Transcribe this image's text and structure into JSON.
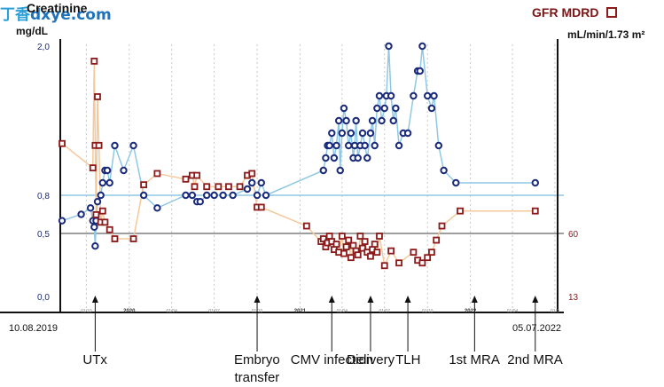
{
  "watermark": {
    "prefix": "丁香",
    "domain": "dxye.com"
  },
  "chart_data": {
    "type": "line",
    "left_axis": {
      "title": "Creatinine",
      "unit": "mg/dL",
      "ticks": [
        {
          "value": 2.0,
          "label": "2,0"
        },
        {
          "value": 0.8,
          "label": "0,8"
        },
        {
          "value": 0.5,
          "label": "0,5"
        },
        {
          "value": 0.0,
          "label": "0,0"
        }
      ],
      "color": "#1a2a7a"
    },
    "right_axis": {
      "title": "GFR MDRD",
      "unit": "mL/min/1.73 m²",
      "ticks": [
        {
          "value": 60,
          "label": "60"
        },
        {
          "value": 13,
          "label": "13"
        }
      ],
      "color": "#8b1a1a"
    },
    "x_start": "10.08.2019",
    "x_end": "05.07.2022",
    "year_ticks": [
      {
        "date": "2020-01-01",
        "label": "2020"
      },
      {
        "date": "2021-01-01",
        "label": "2021"
      },
      {
        "date": "2022-01-01",
        "label": "2022"
      }
    ],
    "minor_ticks": [
      {
        "date": "2019-10-01",
        "label": "01/10"
      },
      {
        "date": "2020-04-01",
        "label": "01/04"
      },
      {
        "date": "2020-07-01",
        "label": "01/07"
      },
      {
        "date": "2020-10-01",
        "label": "01/10"
      },
      {
        "date": "2021-04-01",
        "label": "01/04"
      },
      {
        "date": "2021-07-01",
        "label": "01/07"
      },
      {
        "date": "2021-10-01",
        "label": "01/10"
      },
      {
        "date": "2022-04-01",
        "label": "01/04"
      },
      {
        "date": "2022-07-01",
        "label": "01/0"
      }
    ],
    "reference_lines": [
      {
        "axis": "left",
        "value": 0.8,
        "color": "#8fc8e4"
      },
      {
        "axis": "left",
        "value": 0.5,
        "color": "#9e9e9e"
      }
    ],
    "series": [
      {
        "name": "Creatinine",
        "axis": "left",
        "color": "#1a2a7a",
        "line_color": "#8fc8e4",
        "marker": "circle",
        "points": [
          [
            "2019-08-10",
            0.6
          ],
          [
            "2019-09-20",
            0.65
          ],
          [
            "2019-10-10",
            0.7
          ],
          [
            "2019-10-15",
            0.6
          ],
          [
            "2019-10-18",
            0.55
          ],
          [
            "2019-10-20",
            0.4
          ],
          [
            "2019-10-22",
            0.6
          ],
          [
            "2019-10-25",
            0.75
          ],
          [
            "2019-11-01",
            0.8
          ],
          [
            "2019-11-05",
            0.9
          ],
          [
            "2019-11-10",
            1.0
          ],
          [
            "2019-11-15",
            1.0
          ],
          [
            "2019-11-20",
            0.9
          ],
          [
            "2019-12-01",
            1.2
          ],
          [
            "2019-12-20",
            1.0
          ],
          [
            "2020-01-10",
            1.2
          ],
          [
            "2020-02-01",
            0.8
          ],
          [
            "2020-03-01",
            0.7
          ],
          [
            "2020-05-01",
            0.8
          ],
          [
            "2020-05-15",
            0.8
          ],
          [
            "2020-05-25",
            0.75
          ],
          [
            "2020-06-01",
            0.75
          ],
          [
            "2020-06-15",
            0.8
          ],
          [
            "2020-07-01",
            0.8
          ],
          [
            "2020-07-20",
            0.8
          ],
          [
            "2020-08-10",
            0.8
          ],
          [
            "2020-09-10",
            0.85
          ],
          [
            "2020-09-20",
            0.9
          ],
          [
            "2020-10-01",
            0.8
          ],
          [
            "2020-10-10",
            0.9
          ],
          [
            "2020-10-20",
            0.8
          ],
          [
            "2021-02-20",
            1.0
          ],
          [
            "2021-02-25",
            1.1
          ],
          [
            "2021-03-01",
            1.2
          ],
          [
            "2021-03-05",
            1.2
          ],
          [
            "2021-03-10",
            1.3
          ],
          [
            "2021-03-15",
            1.1
          ],
          [
            "2021-03-20",
            1.2
          ],
          [
            "2021-03-25",
            1.4
          ],
          [
            "2021-03-28",
            1.0
          ],
          [
            "2021-04-01",
            1.3
          ],
          [
            "2021-04-05",
            1.5
          ],
          [
            "2021-04-10",
            1.4
          ],
          [
            "2021-04-15",
            1.2
          ],
          [
            "2021-04-20",
            1.3
          ],
          [
            "2021-04-25",
            1.1
          ],
          [
            "2021-04-28",
            1.2
          ],
          [
            "2021-05-01",
            1.4
          ],
          [
            "2021-05-05",
            1.1
          ],
          [
            "2021-05-10",
            1.2
          ],
          [
            "2021-05-15",
            1.3
          ],
          [
            "2021-05-20",
            1.2
          ],
          [
            "2021-05-25",
            1.1
          ],
          [
            "2021-06-01",
            1.3
          ],
          [
            "2021-06-05",
            1.4
          ],
          [
            "2021-06-10",
            1.2
          ],
          [
            "2021-06-15",
            1.5
          ],
          [
            "2021-06-20",
            1.6
          ],
          [
            "2021-06-25",
            1.4
          ],
          [
            "2021-07-01",
            1.5
          ],
          [
            "2021-07-05",
            1.6
          ],
          [
            "2021-07-10",
            2.0
          ],
          [
            "2021-07-15",
            1.6
          ],
          [
            "2021-07-20",
            1.4
          ],
          [
            "2021-07-25",
            1.5
          ],
          [
            "2021-08-01",
            1.2
          ],
          [
            "2021-08-10",
            1.3
          ],
          [
            "2021-08-20",
            1.3
          ],
          [
            "2021-09-01",
            1.6
          ],
          [
            "2021-09-10",
            1.8
          ],
          [
            "2021-09-15",
            1.8
          ],
          [
            "2021-09-20",
            2.0
          ],
          [
            "2021-10-01",
            1.6
          ],
          [
            "2021-10-10",
            1.5
          ],
          [
            "2021-10-15",
            1.6
          ],
          [
            "2021-10-25",
            1.2
          ],
          [
            "2021-11-05",
            1.0
          ],
          [
            "2021-12-01",
            0.9
          ],
          [
            "2022-05-20",
            0.9
          ]
        ]
      },
      {
        "name": "GFR MDRD",
        "axis": "right",
        "color": "#8b1a1a",
        "line_color": "#f5c89a",
        "marker": "square",
        "points": [
          [
            "2019-08-10",
            108
          ],
          [
            "2019-10-15",
            95
          ],
          [
            "2019-10-18",
            152
          ],
          [
            "2019-10-20",
            107
          ],
          [
            "2019-10-22",
            70
          ],
          [
            "2019-10-25",
            133
          ],
          [
            "2019-10-28",
            107
          ],
          [
            "2019-11-01",
            66
          ],
          [
            "2019-11-05",
            72
          ],
          [
            "2019-11-10",
            66
          ],
          [
            "2019-11-20",
            62
          ],
          [
            "2019-12-01",
            56
          ],
          [
            "2020-01-10",
            56
          ],
          [
            "2020-02-01",
            86
          ],
          [
            "2020-03-01",
            92
          ],
          [
            "2020-05-01",
            89
          ],
          [
            "2020-05-15",
            91
          ],
          [
            "2020-05-20",
            85
          ],
          [
            "2020-05-25",
            91
          ],
          [
            "2020-06-15",
            85
          ],
          [
            "2020-07-10",
            85
          ],
          [
            "2020-08-01",
            85
          ],
          [
            "2020-08-25",
            85
          ],
          [
            "2020-09-10",
            91
          ],
          [
            "2020-09-20",
            92
          ],
          [
            "2020-10-01",
            74
          ],
          [
            "2020-10-10",
            74
          ],
          [
            "2021-01-15",
            64
          ],
          [
            "2021-02-15",
            54
          ],
          [
            "2021-02-20",
            56
          ],
          [
            "2021-02-25",
            50
          ],
          [
            "2021-03-01",
            53
          ],
          [
            "2021-03-05",
            58
          ],
          [
            "2021-03-10",
            54
          ],
          [
            "2021-03-15",
            48
          ],
          [
            "2021-03-20",
            52
          ],
          [
            "2021-03-25",
            46
          ],
          [
            "2021-04-01",
            58
          ],
          [
            "2021-04-05",
            45
          ],
          [
            "2021-04-10",
            50
          ],
          [
            "2021-04-15",
            55
          ],
          [
            "2021-04-20",
            42
          ],
          [
            "2021-04-25",
            51
          ],
          [
            "2021-05-01",
            47
          ],
          [
            "2021-05-05",
            44
          ],
          [
            "2021-05-10",
            58
          ],
          [
            "2021-05-15",
            49
          ],
          [
            "2021-05-20",
            54
          ],
          [
            "2021-05-25",
            46
          ],
          [
            "2021-06-01",
            43
          ],
          [
            "2021-06-05",
            48
          ],
          [
            "2021-06-10",
            52
          ],
          [
            "2021-06-15",
            46
          ],
          [
            "2021-06-20",
            58
          ],
          [
            "2021-07-01",
            36
          ],
          [
            "2021-07-15",
            47
          ],
          [
            "2021-08-01",
            38
          ],
          [
            "2021-09-01",
            46
          ],
          [
            "2021-09-10",
            40
          ],
          [
            "2021-09-20",
            38
          ],
          [
            "2021-10-01",
            42
          ],
          [
            "2021-10-10",
            46
          ],
          [
            "2021-10-20",
            55
          ],
          [
            "2021-11-01",
            64
          ],
          [
            "2021-12-10",
            72
          ],
          [
            "2022-05-20",
            72
          ]
        ]
      }
    ],
    "events": [
      {
        "label": "UTx",
        "date": "2019-10-20"
      },
      {
        "label": "Embryo\ntransfer",
        "date": "2020-10-01"
      },
      {
        "label": "CMV infection",
        "date": "2021-03-10"
      },
      {
        "label": "Delivery",
        "date": "2021-06-01"
      },
      {
        "label": "TLH",
        "date": "2021-08-20"
      },
      {
        "label": "1st MRA",
        "date": "2022-01-10"
      },
      {
        "label": "2nd MRA",
        "date": "2022-05-20"
      }
    ]
  }
}
